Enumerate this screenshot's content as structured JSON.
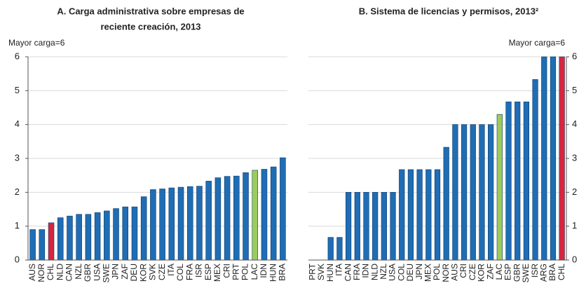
{
  "chart_data": [
    {
      "type": "bar",
      "title": [
        "A. Carga administrativa sobre empresas de",
        "reciente creación, 2013"
      ],
      "annotation": "Mayor carga=6",
      "categories": [
        "AUS",
        "NOR",
        "CHL",
        "NLD",
        "CAN",
        "NZL",
        "GBR",
        "USA",
        "SWE",
        "JPN",
        "ZAF",
        "DEU",
        "KOR",
        "SVK",
        "CZE",
        "ITA",
        "COL",
        "FRA",
        "ISR",
        "ESP",
        "MEX",
        "CRI",
        "PRT",
        "POL",
        "LAC",
        "IDN",
        "HUN",
        "BRA"
      ],
      "values": [
        0.9,
        0.9,
        1.1,
        1.25,
        1.3,
        1.35,
        1.35,
        1.4,
        1.45,
        1.52,
        1.57,
        1.57,
        1.87,
        2.08,
        2.1,
        2.13,
        2.15,
        2.17,
        2.18,
        2.33,
        2.43,
        2.47,
        2.48,
        2.58,
        2.65,
        2.68,
        2.75,
        3.02
      ],
      "colors": [
        "#1f6db5",
        "#1f6db5",
        "#d7263d",
        "#1f6db5",
        "#1f6db5",
        "#1f6db5",
        "#1f6db5",
        "#1f6db5",
        "#1f6db5",
        "#1f6db5",
        "#1f6db5",
        "#1f6db5",
        "#1f6db5",
        "#1f6db5",
        "#1f6db5",
        "#1f6db5",
        "#1f6db5",
        "#1f6db5",
        "#1f6db5",
        "#1f6db5",
        "#1f6db5",
        "#1f6db5",
        "#1f6db5",
        "#1f6db5",
        "#9ccc5a",
        "#1f6db5",
        "#1f6db5",
        "#1f6db5"
      ],
      "ylim": [
        0,
        6
      ],
      "yticks": [
        0,
        1,
        2,
        3,
        4,
        5,
        6
      ],
      "grid": true,
      "y_axis_side": "left"
    },
    {
      "type": "bar",
      "title": [
        "B. Sistema de licencias y permisos, 2013²"
      ],
      "annotation": "Mayor carga=6",
      "categories": [
        "PRT",
        "SVK",
        "HUN",
        "ITA",
        "CAN",
        "FRA",
        "IDN",
        "NLD",
        "NZL",
        "USA",
        "COL",
        "DEU",
        "JPN",
        "MEX",
        "POL",
        "NOR",
        "AUS",
        "CRI",
        "CZE",
        "KOR",
        "ZAF",
        "LAC",
        "ESP",
        "GBR",
        "SWE",
        "ISR",
        "ARG",
        "BRA",
        "CHL"
      ],
      "values": [
        0,
        0,
        0.67,
        0.67,
        2,
        2,
        2,
        2,
        2,
        2,
        2.67,
        2.67,
        2.67,
        2.67,
        2.67,
        3.33,
        4,
        4,
        4,
        4,
        4,
        4.3,
        4.67,
        4.67,
        4.67,
        5.33,
        6,
        6,
        6
      ],
      "colors": [
        "#1f6db5",
        "#1f6db5",
        "#1f6db5",
        "#1f6db5",
        "#1f6db5",
        "#1f6db5",
        "#1f6db5",
        "#1f6db5",
        "#1f6db5",
        "#1f6db5",
        "#1f6db5",
        "#1f6db5",
        "#1f6db5",
        "#1f6db5",
        "#1f6db5",
        "#1f6db5",
        "#1f6db5",
        "#1f6db5",
        "#1f6db5",
        "#1f6db5",
        "#1f6db5",
        "#9ccc5a",
        "#1f6db5",
        "#1f6db5",
        "#1f6db5",
        "#1f6db5",
        "#1f6db5",
        "#1f6db5",
        "#d7263d"
      ],
      "ylim": [
        0,
        6
      ],
      "yticks": [
        0,
        1,
        2,
        3,
        4,
        5,
        6
      ],
      "grid": true,
      "y_axis_side": "right"
    }
  ]
}
